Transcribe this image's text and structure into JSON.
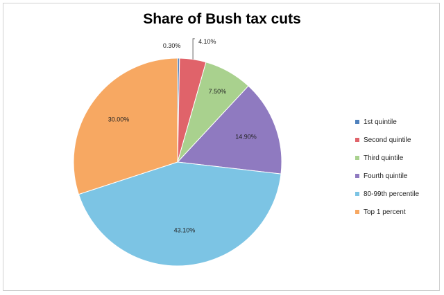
{
  "chart_data": {
    "type": "pie",
    "title": "Share of Bush tax cuts",
    "categories": [
      "1st quintile",
      "Second quintile",
      "Third quintile",
      "Fourth quintile",
      "80-99th percentile",
      "Top 1 percent"
    ],
    "values": [
      0.3,
      4.1,
      7.5,
      14.9,
      43.1,
      30.0
    ],
    "data_labels": [
      "0.30%",
      "4.10%",
      "7.50%",
      "14.90%",
      "43.10%",
      "30.00%"
    ],
    "colors": [
      "#4f81bd",
      "#e0636a",
      "#a9d18e",
      "#8f7ac0",
      "#7cc4e4",
      "#f7a862"
    ],
    "legend_position": "right"
  }
}
